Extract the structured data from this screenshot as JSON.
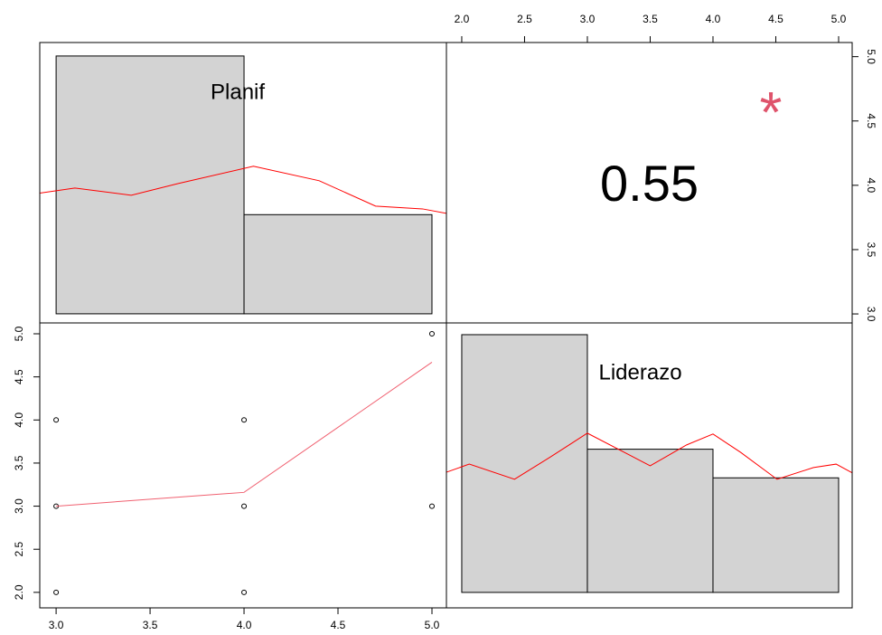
{
  "chart_data": [
    {
      "type": "histogram",
      "title": "Planif",
      "bins": [
        3,
        4,
        5
      ],
      "counts": [
        13,
        5
      ],
      "color": "#d3d3d3",
      "xlim": [
        2.913,
        5.077
      ],
      "ylim": [
        -0.46,
        13.68
      ],
      "density": {
        "color": "#ff0000",
        "x": [
          2.9,
          3.1,
          3.4,
          3.65,
          4.05,
          4.4,
          4.7,
          4.95,
          5.08
        ],
        "values": [
          6.07,
          6.34,
          5.98,
          6.57,
          7.44,
          6.71,
          5.43,
          5.29,
          5.06
        ]
      }
    },
    {
      "type": "correlation",
      "value": 0.55,
      "significance": "*",
      "significance_color": "#df536b",
      "xlim": [
        1.878,
        5.108
      ],
      "ylim": [
        2.93,
        5.11
      ],
      "xticks": [
        {
          "value": 2,
          "label": "2.0"
        },
        2.5,
        {
          "value": 3,
          "label": "3.0"
        },
        3.5,
        {
          "value": 4,
          "label": "4.0"
        },
        4.5,
        {
          "value": 5,
          "label": "5.0"
        }
      ],
      "yticks": [
        {
          "value": 3,
          "label": "3.0"
        },
        3.5,
        {
          "value": 4,
          "label": "4.0"
        },
        4.5,
        {
          "value": 5,
          "label": "5.0"
        }
      ]
    },
    {
      "type": "scatter",
      "x": [
        3,
        3,
        3,
        4,
        4,
        4,
        5,
        5
      ],
      "values": [
        4,
        3,
        2,
        4,
        3,
        2,
        5,
        3
      ],
      "xlim": [
        2.913,
        5.077
      ],
      "ylim": [
        1.82,
        5.126
      ],
      "xticks": [
        {
          "value": 3,
          "label": "3.0"
        },
        3.5,
        {
          "value": 4,
          "label": "4.0"
        },
        4.5,
        {
          "value": 5,
          "label": "5.0"
        }
      ],
      "yticks": [
        {
          "value": 2,
          "label": "2.0"
        },
        2.5,
        {
          "value": 3,
          "label": "3.0"
        },
        3.5,
        {
          "value": 4,
          "label": "4.0"
        },
        4.5,
        {
          "value": 5,
          "label": "5.0"
        }
      ],
      "fit": {
        "color": "#f06070",
        "x": [
          3,
          4,
          5
        ],
        "values": [
          3.0,
          3.16,
          4.67
        ]
      }
    },
    {
      "type": "histogram",
      "title": "Liderazo",
      "bins": [
        2,
        3,
        4,
        5
      ],
      "counts": [
        9,
        5,
        4
      ],
      "color": "#d3d3d3",
      "xlim": [
        1.878,
        5.108
      ],
      "ylim": [
        -0.54,
        9.41
      ],
      "density": {
        "color": "#ff0000",
        "x": [
          1.88,
          2.06,
          2.42,
          2.71,
          3.0,
          3.36,
          3.5,
          3.79,
          4.0,
          4.22,
          4.51,
          4.8,
          4.98,
          5.11
        ],
        "values": [
          4.2,
          4.48,
          3.95,
          4.74,
          5.56,
          4.74,
          4.42,
          5.15,
          5.53,
          4.89,
          3.95,
          4.36,
          4.48,
          4.17
        ]
      }
    }
  ]
}
